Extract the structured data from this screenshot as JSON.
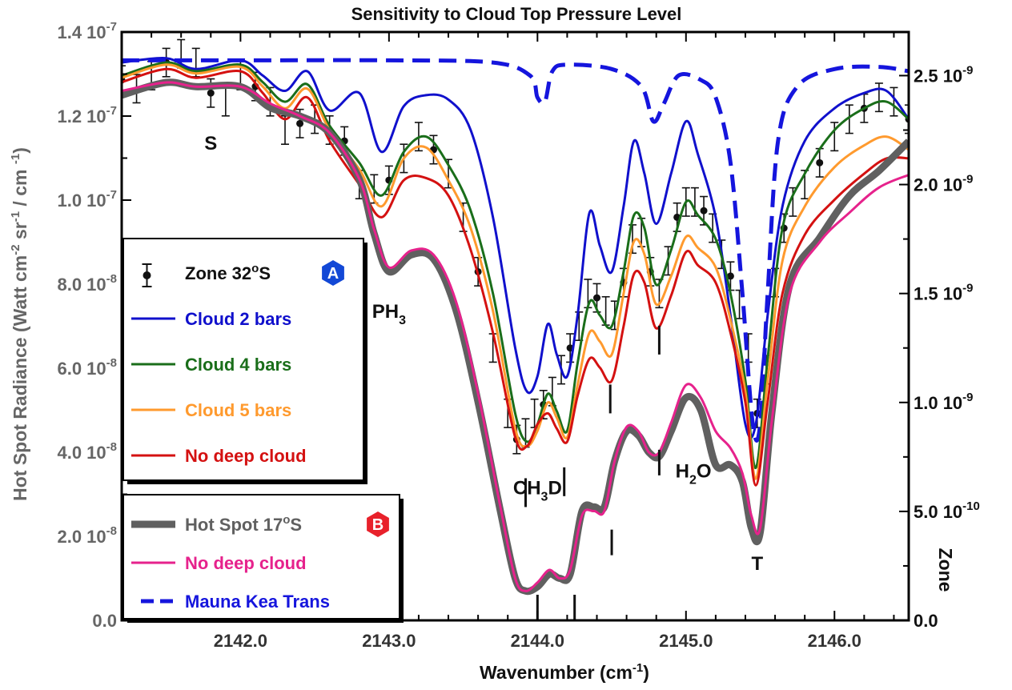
{
  "chart_data": {
    "type": "line",
    "title": "Sensitivity to Cloud Top Pressure Level",
    "xlabel": "Wavenumber (cm-1)",
    "ylabel": "Hot Spot Radiance (Watt cm-2 sr-1 / cm-1)",
    "y2label": "Zone",
    "xlim": [
      2141.2,
      2146.5
    ],
    "ylim": [
      0,
      1.4e-07
    ],
    "y2lim": [
      0,
      2.7e-09
    ],
    "x_ticks": [
      2142.0,
      2143.0,
      2144.0,
      2145.0,
      2146.0
    ],
    "x_tick_labels": [
      "2142.0",
      "2143.0",
      "2144.0",
      "2145.0",
      "2146.0"
    ],
    "y_ticks": [
      0,
      2e-08,
      4e-08,
      6e-08,
      8e-08,
      1e-07,
      1.2e-07,
      1.4e-07
    ],
    "y_tick_labels": [
      {
        "mant": "0.0",
        "exp": ""
      },
      {
        "mant": "2.0 10",
        "exp": "-8"
      },
      {
        "mant": "4.0 10",
        "exp": "-8"
      },
      {
        "mant": "6.0 10",
        "exp": "-8"
      },
      {
        "mant": "8.0 10",
        "exp": "-8"
      },
      {
        "mant": "1.0 10",
        "exp": "-7"
      },
      {
        "mant": "1.2 10",
        "exp": "-7"
      },
      {
        "mant": "1.4 10",
        "exp": "-7"
      }
    ],
    "y2_ticks": [
      0,
      5e-10,
      1e-09,
      1.5e-09,
      2e-09,
      2.5e-09
    ],
    "y2_tick_labels": [
      {
        "mant": "0.0",
        "exp": ""
      },
      {
        "mant": "5.0 10",
        "exp": "-10"
      },
      {
        "mant": "1.0 10",
        "exp": "-9"
      },
      {
        "mant": "1.5 10",
        "exp": "-9"
      },
      {
        "mant": "2.0 10",
        "exp": "-9"
      },
      {
        "mant": "2.5 10",
        "exp": "-9"
      }
    ],
    "grid": false,
    "series": [
      {
        "name": "Cloud 2 bars",
        "color": "#1010cc",
        "width": 3,
        "axis": "right",
        "x": [
          2141.2,
          2141.5,
          2141.7,
          2142.0,
          2142.15,
          2142.3,
          2142.45,
          2142.6,
          2142.8,
          2142.95,
          2143.1,
          2143.25,
          2143.4,
          2143.55,
          2143.7,
          2143.85,
          2143.93,
          2144.0,
          2144.07,
          2144.13,
          2144.2,
          2144.27,
          2144.35,
          2144.42,
          2144.5,
          2144.58,
          2144.65,
          2144.72,
          2144.8,
          2144.9,
          2145.0,
          2145.08,
          2145.2,
          2145.3,
          2145.4,
          2145.47,
          2145.55,
          2145.65,
          2145.8,
          2146.0,
          2146.2,
          2146.35,
          2146.5
        ],
        "y": [
          2.56e-09,
          2.58e-09,
          2.53e-09,
          2.57e-09,
          2.5e-09,
          2.43e-09,
          2.52e-09,
          2.34e-09,
          2.42e-09,
          2.15e-09,
          2.36e-09,
          2.41e-09,
          2.39e-09,
          2.25e-09,
          1.85e-09,
          1.25e-09,
          1.05e-09,
          1.12e-09,
          1.36e-09,
          1.22e-09,
          1.12e-09,
          1.4e-09,
          1.87e-09,
          1.72e-09,
          1.6e-09,
          1.9e-09,
          2.2e-09,
          2.05e-09,
          1.82e-09,
          2.05e-09,
          2.29e-09,
          2.14e-09,
          1.85e-09,
          1.4e-09,
          9e-10,
          9e-10,
          1.4e-09,
          1.9e-09,
          2.2e-09,
          2.35e-09,
          2.42e-09,
          2.43e-09,
          2.3e-09
        ]
      },
      {
        "name": "Mauna Kea Trans",
        "color": "#1515dd",
        "width": 5,
        "dash": "22,11",
        "axis": "right",
        "x": [
          2141.2,
          2142.0,
          2143.0,
          2143.7,
          2143.95,
          2144.0,
          2144.05,
          2144.1,
          2144.2,
          2144.5,
          2144.7,
          2144.78,
          2144.85,
          2144.95,
          2145.1,
          2145.2,
          2145.3,
          2145.38,
          2145.45,
          2145.5,
          2145.55,
          2145.62,
          2145.75,
          2146.0,
          2146.3,
          2146.5
        ],
        "y": [
          2.57e-09,
          2.57e-09,
          2.57e-09,
          2.56e-09,
          2.5e-09,
          2.4e-09,
          2.38e-09,
          2.52e-09,
          2.55e-09,
          2.53e-09,
          2.45e-09,
          2.29e-09,
          2.37e-09,
          2.5e-09,
          2.48e-09,
          2.4e-09,
          2.1e-09,
          1.5e-09,
          9e-10,
          9e-10,
          1.5e-09,
          2.2e-09,
          2.45e-09,
          2.53e-09,
          2.54e-09,
          2.52e-09
        ]
      },
      {
        "name": "Cloud 4 bars",
        "color": "#1a6e1a",
        "width": 3,
        "axis": "right",
        "x": [
          2141.2,
          2141.5,
          2141.7,
          2142.0,
          2142.15,
          2142.3,
          2142.45,
          2142.6,
          2142.8,
          2142.95,
          2143.1,
          2143.25,
          2143.4,
          2143.55,
          2143.7,
          2143.85,
          2143.93,
          2144.0,
          2144.07,
          2144.13,
          2144.2,
          2144.27,
          2144.35,
          2144.42,
          2144.5,
          2144.58,
          2144.65,
          2144.72,
          2144.8,
          2144.9,
          2145.0,
          2145.08,
          2145.2,
          2145.3,
          2145.4,
          2145.47,
          2145.55,
          2145.65,
          2145.8,
          2146.0,
          2146.2,
          2146.35,
          2146.5
        ],
        "y": [
          2.5e-09,
          2.56e-09,
          2.52e-09,
          2.55e-09,
          2.47e-09,
          2.38e-09,
          2.46e-09,
          2.27e-09,
          2.1e-09,
          1.95e-09,
          2.15e-09,
          2.22e-09,
          2.09e-09,
          1.88e-09,
          1.5e-09,
          9.5e-10,
          8.2e-10,
          9e-10,
          1.04e-09,
          9.6e-10,
          8.7e-10,
          1.18e-09,
          1.46e-09,
          1.4e-09,
          1.35e-09,
          1.6e-09,
          1.86e-09,
          1.8e-09,
          1.54e-09,
          1.7e-09,
          1.92e-09,
          1.86e-09,
          1.75e-09,
          1.5e-09,
          1.1e-09,
          7e-10,
          1.2e-09,
          1.8e-09,
          2.05e-09,
          2.25e-09,
          2.35e-09,
          2.38e-09,
          2.3e-09
        ]
      },
      {
        "name": "Cloud 5 bars",
        "color": "#ff9a2e",
        "width": 3,
        "axis": "right",
        "x": [
          2141.2,
          2141.5,
          2141.7,
          2142.0,
          2142.15,
          2142.3,
          2142.45,
          2142.6,
          2142.8,
          2142.95,
          2143.1,
          2143.25,
          2143.4,
          2143.55,
          2143.7,
          2143.85,
          2143.93,
          2144.0,
          2144.07,
          2144.13,
          2144.2,
          2144.27,
          2144.35,
          2144.42,
          2144.5,
          2144.58,
          2144.65,
          2144.72,
          2144.8,
          2144.9,
          2145.0,
          2145.08,
          2145.2,
          2145.3,
          2145.4,
          2145.47,
          2145.55,
          2145.65,
          2145.8,
          2146.0,
          2146.2,
          2146.35,
          2146.5
        ],
        "y": [
          2.49e-09,
          2.55e-09,
          2.51e-09,
          2.54e-09,
          2.45e-09,
          2.35e-09,
          2.44e-09,
          2.25e-09,
          2.07e-09,
          1.9e-09,
          2.12e-09,
          2.17e-09,
          2.02e-09,
          1.8e-09,
          1.42e-09,
          8.8e-10,
          8e-10,
          8.7e-10,
          1e-09,
          9.3e-10,
          8.4e-10,
          1.08e-09,
          1.32e-09,
          1.28e-09,
          1.22e-09,
          1.5e-09,
          1.74e-09,
          1.68e-09,
          1.45e-09,
          1.58e-09,
          1.76e-09,
          1.71e-09,
          1.62e-09,
          1.38e-09,
          1.05e-09,
          6.5e-10,
          1.1e-09,
          1.65e-09,
          1.9e-09,
          2.08e-09,
          2.18e-09,
          2.22e-09,
          2.16e-09
        ]
      },
      {
        "name": "No deep cloud",
        "color": "#d41111",
        "width": 3,
        "axis": "right",
        "x": [
          2141.2,
          2141.5,
          2141.7,
          2142.0,
          2142.15,
          2142.3,
          2142.45,
          2142.6,
          2142.8,
          2142.95,
          2143.1,
          2143.25,
          2143.4,
          2143.55,
          2143.7,
          2143.85,
          2143.93,
          2144.0,
          2144.07,
          2144.13,
          2144.2,
          2144.27,
          2144.35,
          2144.42,
          2144.5,
          2144.58,
          2144.65,
          2144.72,
          2144.8,
          2144.9,
          2145.0,
          2145.08,
          2145.2,
          2145.3,
          2145.4,
          2145.47,
          2145.55,
          2145.65,
          2145.8,
          2146.0,
          2146.2,
          2146.35,
          2146.5
        ],
        "y": [
          2.47e-09,
          2.53e-09,
          2.49e-09,
          2.52e-09,
          2.42e-09,
          2.3e-09,
          2.4e-09,
          2.2e-09,
          2e-09,
          1.85e-09,
          2.02e-09,
          2.03e-09,
          1.95e-09,
          1.7e-09,
          1.32e-09,
          8.4e-10,
          8e-10,
          9e-10,
          9.5e-10,
          8.8e-10,
          8.2e-10,
          1.03e-09,
          1.2e-09,
          1.16e-09,
          1.1e-09,
          1.35e-09,
          1.59e-09,
          1.55e-09,
          1.34e-09,
          1.49e-09,
          1.69e-09,
          1.63e-09,
          1.55e-09,
          1.32e-09,
          1e-09,
          6.2e-10,
          1e-09,
          1.5e-09,
          1.77e-09,
          1.93e-09,
          2.05e-09,
          2.12e-09,
          2.12e-09
        ]
      },
      {
        "name": "Hot Spot 17oS",
        "color": "#606060",
        "width": 9,
        "axis": "left",
        "x": [
          2141.2,
          2141.5,
          2141.7,
          2142.0,
          2142.2,
          2142.4,
          2142.6,
          2142.8,
          2142.9,
          2143.0,
          2143.15,
          2143.3,
          2143.45,
          2143.6,
          2143.75,
          2143.85,
          2143.92,
          2144.0,
          2144.08,
          2144.15,
          2144.22,
          2144.3,
          2144.38,
          2144.45,
          2144.52,
          2144.6,
          2144.68,
          2144.75,
          2144.82,
          2144.9,
          2145.0,
          2145.1,
          2145.2,
          2145.3,
          2145.38,
          2145.44,
          2145.5,
          2145.58,
          2145.7,
          2145.9,
          2146.1,
          2146.3,
          2146.5
        ],
        "y": [
          1.25e-07,
          1.28e-07,
          1.27e-07,
          1.27e-07,
          1.22e-07,
          1.2e-07,
          1.16e-07,
          1.05e-07,
          9.2e-08,
          8.3e-08,
          8.7e-08,
          8.6e-08,
          7.4e-08,
          5.2e-08,
          2.6e-08,
          1e-08,
          7e-09,
          8e-09,
          1.1e-08,
          1e-08,
          1.1e-08,
          2.6e-08,
          2.7e-08,
          2.7e-08,
          3.8e-08,
          4.5e-08,
          4.4e-08,
          4e-08,
          3.9e-08,
          4.5e-08,
          5.3e-08,
          5e-08,
          3.7e-08,
          3.7e-08,
          3.3e-08,
          2.2e-08,
          2.1e-08,
          5e-08,
          8e-08,
          9.1e-08,
          1.01e-07,
          1.07e-07,
          1.14e-07
        ]
      },
      {
        "name": "No deep cloud (Hot Spot)",
        "color": "#e6228c",
        "width": 3,
        "axis": "left",
        "x": [
          2141.2,
          2141.5,
          2141.7,
          2142.0,
          2142.2,
          2142.4,
          2142.6,
          2142.8,
          2142.9,
          2143.0,
          2143.15,
          2143.3,
          2143.45,
          2143.6,
          2143.75,
          2143.85,
          2143.92,
          2144.0,
          2144.08,
          2144.15,
          2144.22,
          2144.3,
          2144.38,
          2144.45,
          2144.52,
          2144.6,
          2144.68,
          2144.75,
          2144.82,
          2144.9,
          2145.0,
          2145.1,
          2145.2,
          2145.3,
          2145.38,
          2145.44,
          2145.5,
          2145.58,
          2145.7,
          2145.9,
          2146.1,
          2146.3,
          2146.5
        ],
        "y": [
          1.26e-07,
          1.28e-07,
          1.27e-07,
          1.27e-07,
          1.23e-07,
          1.2e-07,
          1.16e-07,
          1.05e-07,
          9.3e-08,
          8.4e-08,
          8.8e-08,
          8.7e-08,
          7.6e-08,
          5.4e-08,
          2.7e-08,
          1e-08,
          7e-09,
          9e-09,
          1.2e-08,
          1e-08,
          1.2e-08,
          2.5e-08,
          2.6e-08,
          2.6e-08,
          3.8e-08,
          4.6e-08,
          4.5e-08,
          4e-08,
          4e-08,
          4.7e-08,
          5.6e-08,
          5.3e-08,
          4.5e-08,
          4.1e-08,
          3.5e-08,
          2.5e-08,
          2.2e-08,
          4.8e-08,
          7.8e-08,
          9e-08,
          9.7e-08,
          1.03e-07,
          1.06e-07
        ]
      }
    ],
    "observations": {
      "name": "Zone 32oS",
      "color": "#111111",
      "axis": "right",
      "err": 6.5e-11,
      "x": [
        2141.2,
        2141.3,
        2141.4,
        2141.5,
        2141.6,
        2141.7,
        2141.8,
        2141.9,
        2142.0,
        2142.1,
        2142.2,
        2142.3,
        2142.4,
        2142.5,
        2142.6,
        2142.7,
        2142.8,
        2142.9,
        2143.0,
        2143.1,
        2143.2,
        2143.3,
        2143.4,
        2143.5,
        2143.6,
        2143.7,
        2143.8,
        2143.86,
        2143.92,
        2143.98,
        2144.04,
        2144.1,
        2144.16,
        2144.22,
        2144.28,
        2144.34,
        2144.4,
        2144.46,
        2144.52,
        2144.58,
        2144.64,
        2144.7,
        2144.76,
        2144.82,
        2144.88,
        2144.94,
        2145.0,
        2145.06,
        2145.12,
        2145.18,
        2145.24,
        2145.3,
        2145.36,
        2145.42,
        2145.48,
        2145.54,
        2145.6,
        2145.66,
        2145.72,
        2145.8,
        2145.9,
        2146.0,
        2146.1,
        2146.2,
        2146.3,
        2146.4,
        2146.5
      ],
      "y": [
        2.48e-09,
        2.44e-09,
        2.5e-09,
        2.56e-09,
        2.6e-09,
        2.56e-09,
        2.42e-09,
        2.38e-09,
        2.5e-09,
        2.45e-09,
        2.38e-09,
        2.25e-09,
        2.28e-09,
        2.3e-09,
        2.25e-09,
        2.2e-09,
        2e-09,
        1.98e-09,
        2.02e-09,
        2.12e-09,
        2.22e-09,
        2.16e-09,
        2.05e-09,
        1.85e-09,
        1.6e-09,
        1.25e-09,
        9.5e-10,
        8.3e-10,
        8.6e-10,
        9.5e-10,
        9.9e-10,
        1.05e-09,
        1.15e-09,
        1.25e-09,
        1.35e-09,
        1.5e-09,
        1.48e-09,
        1.42e-09,
        1.4e-09,
        1.55e-09,
        1.75e-09,
        1.78e-09,
        1.6e-09,
        1.5e-09,
        1.65e-09,
        1.85e-09,
        1.92e-09,
        1.92e-09,
        1.88e-09,
        1.8e-09,
        1.68e-09,
        1.58e-09,
        1.45e-09,
        1.25e-09,
        9.5e-10,
        1.15e-09,
        1.55e-09,
        1.8e-09,
        1.92e-09,
        2e-09,
        2.1e-09,
        2.22e-09,
        2.3e-09,
        2.35e-09,
        2.4e-09,
        2.38e-09,
        2.3e-09
      ]
    },
    "annotations": [
      {
        "text": "S",
        "x": 2141.8,
        "y": 1.12e-07
      },
      {
        "text": "PH",
        "sub": "3",
        "x": 2143.0,
        "y": 7.2e-08
      },
      {
        "text": "CH",
        "sub": "3",
        "tail": "D",
        "x": 2144.0,
        "y": 3e-08
      },
      {
        "text": "H",
        "sub": "2",
        "tail": "O",
        "x": 2145.05,
        "y": 3.4e-08
      },
      {
        "text": "T",
        "x": 2145.48,
        "y": 1.2e-08
      }
    ],
    "markers_left": [
      {
        "x": 2144.0,
        "y": 0.0
      },
      {
        "x": 2144.25,
        "y": 0.0
      },
      {
        "x": 2144.5,
        "y": 1.55e-08
      },
      {
        "x": 2144.82,
        "y": 3.45e-08
      }
    ],
    "markers_right": [
      {
        "x": 2143.92,
        "y": 5.2e-10
      },
      {
        "x": 2144.18,
        "y": 5.7e-10
      },
      {
        "x": 2144.49,
        "y": 9.5e-10
      },
      {
        "x": 2144.82,
        "y": 1.22e-09
      }
    ],
    "legend_a": {
      "placement": "middle-left",
      "badge": "A",
      "items": [
        {
          "label": "Zone 32",
          "sup": "o",
          "tail": "S",
          "color": "#111111",
          "kind": "errbar"
        },
        {
          "label": "Cloud 2 bars",
          "color": "#1010cc",
          "kind": "line"
        },
        {
          "label": "Cloud 4 bars",
          "color": "#1a6e1a",
          "kind": "line"
        },
        {
          "label": "Cloud 5 bars",
          "color": "#ff9a2e",
          "kind": "line"
        },
        {
          "label": "No deep cloud",
          "color": "#d41111",
          "kind": "line"
        }
      ]
    },
    "legend_b": {
      "placement": "bottom-left",
      "badge": "B",
      "items": [
        {
          "label": "Hot Spot 17",
          "sup": "o",
          "tail": "S",
          "color": "#606060",
          "kind": "thick"
        },
        {
          "label": "No deep cloud",
          "color": "#e6228c",
          "kind": "line"
        },
        {
          "label": "Mauna Kea Trans",
          "color": "#1515dd",
          "kind": "dash"
        }
      ]
    },
    "badge_colors": {
      "A": "#1248d6",
      "B": "#e8212b"
    }
  }
}
